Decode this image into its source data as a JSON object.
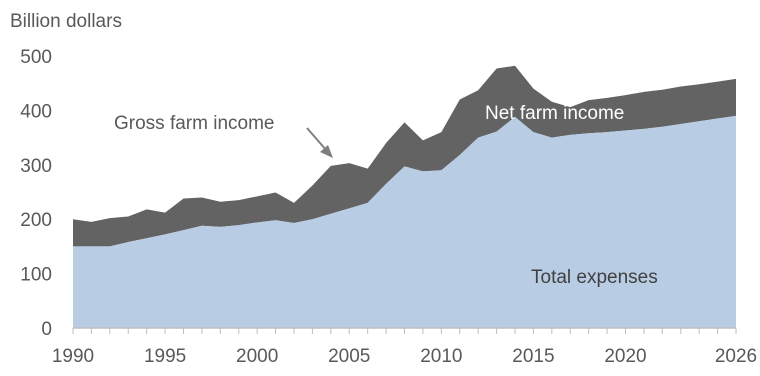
{
  "chart_data": {
    "type": "area",
    "ylabel": "Billion dollars",
    "ylim": [
      0,
      500
    ],
    "yticks": [
      0,
      100,
      200,
      300,
      400,
      500
    ],
    "xlim": [
      1990,
      2026
    ],
    "xticks": [
      1990,
      1995,
      2000,
      2005,
      2010,
      2015,
      2020,
      2026
    ],
    "grid": false,
    "colors": {
      "expenses_fill": "#b8cce4",
      "net_income_fill": "#636363",
      "axis": "#bfbfbf",
      "arrow": "#7f7f7f",
      "dark_text": "#404040",
      "light_text": "#ffffff",
      "gray_text": "#595959"
    },
    "x": [
      1990,
      1991,
      1992,
      1993,
      1994,
      1995,
      1996,
      1997,
      1998,
      1999,
      2000,
      2001,
      2002,
      2003,
      2004,
      2005,
      2006,
      2007,
      2008,
      2009,
      2010,
      2011,
      2012,
      2013,
      2014,
      2015,
      2016,
      2017,
      2018,
      2019,
      2020,
      2021,
      2022,
      2023,
      2024,
      2025,
      2026
    ],
    "series": [
      {
        "name": "Total expenses",
        "values": [
          150,
          150,
          150,
          158,
          165,
          172,
          180,
          188,
          186,
          189,
          194,
          198,
          193,
          200,
          210,
          220,
          230,
          265,
          297,
          288,
          290,
          318,
          350,
          361,
          388,
          360,
          350,
          355,
          358,
          360,
          363,
          366,
          370,
          375,
          380,
          385,
          390
        ]
      },
      {
        "name": "Gross farm income",
        "values": [
          200,
          195,
          202,
          205,
          218,
          212,
          238,
          240,
          232,
          235,
          242,
          249,
          230,
          262,
          298,
          303,
          293,
          340,
          378,
          345,
          360,
          420,
          437,
          477,
          482,
          440,
          416,
          406,
          419,
          423,
          428,
          434,
          438,
          444,
          448,
          453,
          458
        ]
      }
    ],
    "annotations": {
      "gross": "Gross farm income",
      "net": "Net farm income",
      "expenses": "Total expenses"
    }
  }
}
